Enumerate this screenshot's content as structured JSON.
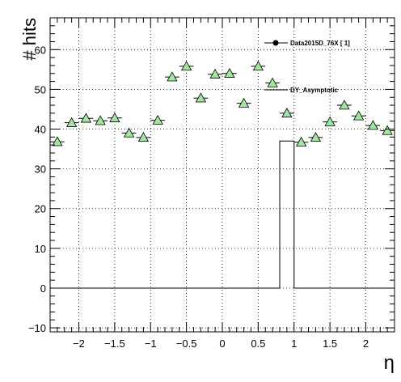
{
  "chart_data": {
    "type": "scatter",
    "title": "",
    "xlabel": "η",
    "ylabel": "# hits",
    "xlim": [
      -2.4,
      2.4
    ],
    "ylim": [
      -11,
      68
    ],
    "grid": true,
    "legend_placement": "top-right",
    "x_ticks": [
      -2,
      -1.5,
      -1,
      -0.5,
      0,
      0.5,
      1,
      1.5,
      2
    ],
    "x_tick_labels": [
      "−2",
      "−1.5",
      "−1",
      "−0.5",
      "0",
      "0.5",
      "1",
      "1.5",
      "2"
    ],
    "y_ticks": [
      -10,
      0,
      10,
      20,
      30,
      40,
      50,
      60
    ],
    "y_tick_labels": [
      "−10",
      "0",
      "10",
      "20",
      "30",
      "40",
      "50",
      "60"
    ],
    "series": [
      {
        "name": "Data2015D_76X [        1]",
        "kind": "histogram-step",
        "bin_edges": [
          -2.4,
          -2.2,
          -2.0,
          -1.8,
          -1.6,
          -1.4,
          -1.2,
          -1.0,
          -0.8,
          -0.6,
          -0.4,
          -0.2,
          0.0,
          0.2,
          0.4,
          0.6,
          0.8,
          1.0,
          1.2,
          1.4,
          1.6,
          1.8,
          2.0,
          2.2,
          2.4
        ],
        "values": [
          0,
          0,
          0,
          0,
          0,
          0,
          0,
          0,
          0,
          0,
          0,
          0,
          0,
          0,
          0,
          0,
          37,
          0,
          0,
          0,
          0,
          0,
          0,
          0
        ]
      },
      {
        "name": "DY_Asymptotic",
        "kind": "markers",
        "marker": "triangle",
        "color": "#9ee89e",
        "x": [
          -2.3,
          -2.1,
          -1.9,
          -1.7,
          -1.5,
          -1.3,
          -1.1,
          -0.9,
          -0.7,
          -0.5,
          -0.3,
          -0.1,
          0.1,
          0.3,
          0.5,
          0.7,
          0.9,
          1.1,
          1.3,
          1.5,
          1.7,
          1.9,
          2.1,
          2.3
        ],
        "y": [
          36.8,
          41.6,
          42.7,
          42.1,
          42.8,
          39.0,
          37.9,
          42.2,
          53.1,
          55.8,
          47.8,
          53.8,
          54.0,
          46.5,
          55.8,
          51.6,
          44.0,
          36.7,
          37.9,
          41.8,
          46.0,
          43.3,
          40.9,
          39.6
        ]
      }
    ]
  }
}
